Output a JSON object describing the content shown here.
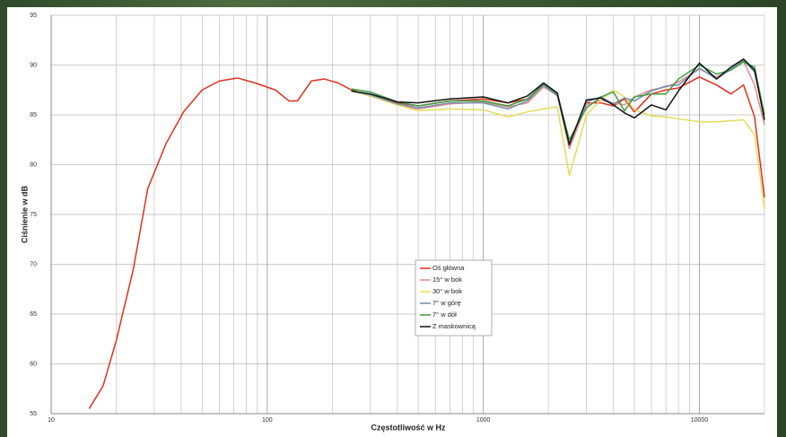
{
  "chart_data": {
    "type": "line",
    "x_label": "Częstotliwość w Hz",
    "y_label": "Ciśnienie w dB",
    "x_log_scale": true,
    "grid": true,
    "minor_grid": true,
    "legend_position": "center",
    "xlim": [
      10,
      20000
    ],
    "xticks": [
      10,
      100,
      1000,
      10000
    ],
    "ylim": [
      55,
      95
    ],
    "yticks": [
      55,
      60,
      65,
      70,
      75,
      80,
      85,
      90,
      95
    ],
    "x": [
      15,
      17.4,
      20,
      24,
      28,
      34,
      41,
      50,
      60,
      73,
      88,
      109,
      126,
      138,
      160,
      184,
      213,
      245,
      300,
      400,
      500,
      700,
      1000,
      1300,
      1600,
      1900,
      2200,
      2500,
      3000,
      3500,
      4000,
      4500,
      5000,
      6000,
      7000,
      8000,
      10000,
      12000,
      14000,
      16000,
      18000,
      20000
    ],
    "series": [
      {
        "name": "Oś główna",
        "color": "#e0301e",
        "values": [
          55.5,
          57.8,
          62.3,
          69.5,
          77.6,
          82.1,
          85.3,
          87.5,
          88.4,
          88.7,
          88.2,
          87.5,
          86.4,
          86.4,
          88.4,
          88.6,
          88.2,
          87.5,
          86.9,
          86.2,
          85.9,
          86.4,
          86.6,
          86.2,
          86.6,
          88,
          87.1,
          82.1,
          86.2,
          86.2,
          85.9,
          86.6,
          85.3,
          87.1,
          87.5,
          87.7,
          88.8,
          88,
          87.1,
          88,
          84.8,
          76.7
        ]
      },
      {
        "name": "15° w bok",
        "color": "#e58a8a",
        "values": [
          null,
          null,
          null,
          null,
          null,
          null,
          null,
          null,
          null,
          null,
          null,
          null,
          null,
          null,
          null,
          null,
          null,
          87.4,
          86.9,
          86,
          85.6,
          86.1,
          86.3,
          85.8,
          86.2,
          87.8,
          87,
          81.6,
          86,
          86.5,
          86.2,
          86,
          86.8,
          87.5,
          87.8,
          88.3,
          89.6,
          88.8,
          89.5,
          90.4,
          88,
          84
        ]
      },
      {
        "name": "30° w bok",
        "color": "#e4dc5a",
        "values": [
          null,
          null,
          null,
          null,
          null,
          null,
          null,
          null,
          null,
          null,
          null,
          null,
          null,
          null,
          null,
          null,
          null,
          87.4,
          86.9,
          86,
          85.4,
          85.6,
          85.5,
          84.8,
          85.3,
          85.6,
          85.8,
          78.9,
          85,
          86.5,
          87.5,
          86.8,
          85.5,
          84.9,
          84.8,
          84.6,
          84.3,
          84.3,
          84.4,
          84.5,
          83,
          75.5
        ]
      },
      {
        "name": "7° w górę",
        "color": "#6f8fb0",
        "values": [
          null,
          null,
          null,
          null,
          null,
          null,
          null,
          null,
          null,
          null,
          null,
          null,
          null,
          null,
          null,
          null,
          null,
          87.4,
          87,
          86.1,
          85.7,
          86.2,
          86.2,
          85.6,
          86.4,
          88,
          86.9,
          82.1,
          86.3,
          86.8,
          86.1,
          86.7,
          86.4,
          87.4,
          87.9,
          88,
          89.7,
          88.6,
          89.6,
          90.5,
          89.3,
          85
        ]
      },
      {
        "name": "7° w dół",
        "color": "#3f9e3f",
        "values": [
          null,
          null,
          null,
          null,
          null,
          null,
          null,
          null,
          null,
          null,
          null,
          null,
          null,
          null,
          null,
          null,
          null,
          87.6,
          87.3,
          86.3,
          85.9,
          86.4,
          86.4,
          85.9,
          86.6,
          88.1,
          87.1,
          82.5,
          85.7,
          86.8,
          87.3,
          85.4,
          86.8,
          87.1,
          87.1,
          88.6,
          90,
          89.1,
          89.5,
          90.3,
          89.8,
          85
        ]
      },
      {
        "name": "Z maskownicą",
        "color": "#111111",
        "values": [
          null,
          null,
          null,
          null,
          null,
          null,
          null,
          null,
          null,
          null,
          null,
          null,
          null,
          null,
          null,
          null,
          null,
          87.4,
          87.1,
          86.3,
          86.2,
          86.6,
          86.8,
          86.2,
          86.9,
          88.2,
          87.2,
          82,
          86.5,
          86.7,
          86,
          85.2,
          84.7,
          86,
          85.5,
          87.4,
          90.2,
          88.6,
          89.8,
          90.6,
          89.5,
          84.5
        ]
      }
    ]
  }
}
